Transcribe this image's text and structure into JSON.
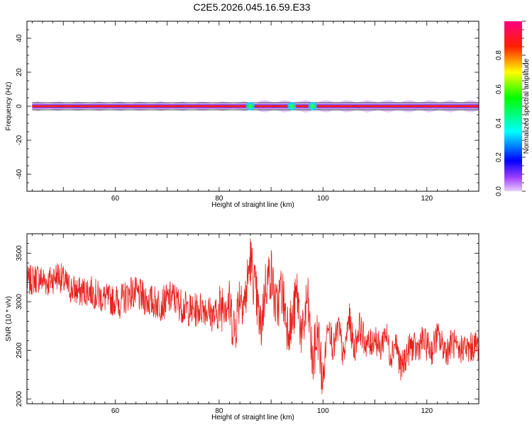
{
  "title": "C2E5.2026.045.16.59.E33",
  "chart_data": [
    {
      "type": "heatmap",
      "xlabel": "Height of straight line (km)",
      "ylabel": "Frequency (Hz)",
      "xlim": [
        43,
        130
      ],
      "ylim": [
        -50,
        50
      ],
      "x_ticks": [
        "60",
        "80",
        "100",
        "120"
      ],
      "y_ticks": [
        "40",
        "20",
        "0",
        "-20",
        "-40"
      ],
      "band_center_hz": 0,
      "band_start_km": 44,
      "bright_spots_km": [
        86,
        94,
        98
      ],
      "grid": false,
      "colorbar": {
        "label": "Normalized spectral amplitude",
        "range": [
          0,
          1
        ],
        "ticks": [
          "0.0",
          "0.2",
          "0.4",
          "0.6",
          "0.8"
        ],
        "colormap": [
          "#ff00ff",
          "#0000ff",
          "#00ffff",
          "#00ff00",
          "#ffff00",
          "#ff0000",
          "#ff0080"
        ]
      }
    },
    {
      "type": "line",
      "xlabel": "Height of straight line (km)",
      "ylabel": "SNR (10 * v/v)",
      "xlim": [
        43,
        130
      ],
      "ylim": [
        1950,
        3700
      ],
      "x_ticks": [
        "60",
        "80",
        "100",
        "120"
      ],
      "y_ticks": [
        "3500",
        "3000",
        "2500",
        "2000"
      ],
      "series": [
        {
          "color": "#e8211d",
          "x": [
            43,
            45,
            47,
            49,
            51,
            53,
            55,
            57,
            59,
            61,
            63,
            65,
            67,
            69,
            71,
            73,
            75,
            77,
            79,
            80,
            81,
            82,
            83,
            84,
            85,
            86,
            87,
            88,
            89,
            90,
            91,
            92,
            93,
            94,
            95,
            96,
            97,
            98,
            99,
            100,
            101,
            102,
            103,
            104,
            105,
            106,
            107,
            108,
            109,
            110,
            111,
            112,
            113,
            114,
            115,
            116,
            117,
            118,
            119,
            120,
            121,
            122,
            123,
            124,
            125,
            126,
            127,
            128,
            129,
            130
          ],
          "y": [
            3200,
            3250,
            3200,
            3280,
            3150,
            3100,
            3120,
            3050,
            3020,
            3000,
            3100,
            3050,
            3000,
            2980,
            3050,
            2950,
            2900,
            2950,
            2850,
            2900,
            3050,
            2950,
            2700,
            3100,
            3000,
            3450,
            3100,
            2700,
            3200,
            3300,
            2900,
            3150,
            2800,
            2750,
            3100,
            2600,
            3050,
            2350,
            2700,
            2150,
            2850,
            2500,
            2750,
            2400,
            2850,
            2500,
            2750,
            2600,
            2550,
            2650,
            2500,
            2700,
            2450,
            2600,
            2300,
            2450,
            2550,
            2500,
            2600,
            2550,
            2500,
            2650,
            2550,
            2500,
            2600,
            2450,
            2550,
            2500,
            2550,
            2550
          ],
          "bands": [
            {
              "from": 43,
              "to": 60,
              "spread": 180
            },
            {
              "from": 60,
              "to": 80,
              "spread": 200
            },
            {
              "from": 80,
              "to": 100,
              "spread": 320
            },
            {
              "from": 100,
              "to": 130,
              "spread": 180
            }
          ]
        }
      ]
    }
  ]
}
